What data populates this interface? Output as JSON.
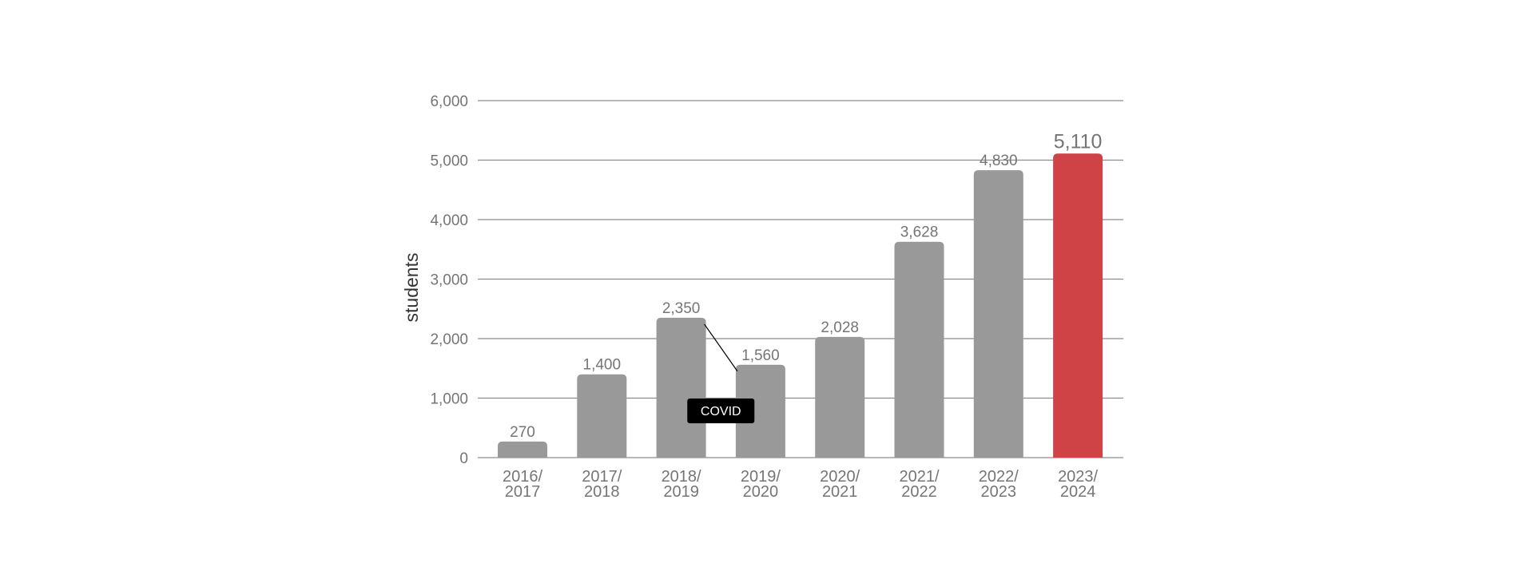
{
  "colors": {
    "bar": "#999999",
    "highlight": "#cf4346",
    "grid": "#8c8c8c",
    "text": "#757575",
    "annotation_bg": "#000000",
    "annotation_text": "#ffffff"
  },
  "chart_data": {
    "type": "bar",
    "title": "",
    "xlabel": "",
    "ylabel": "students",
    "ylim": [
      0,
      6000
    ],
    "yticks": [
      0,
      1000,
      2000,
      3000,
      4000,
      5000,
      6000
    ],
    "ytick_labels": [
      "0",
      "1,000",
      "2,000",
      "3,000",
      "4,000",
      "5,000",
      "6,000"
    ],
    "grid": true,
    "categories": [
      [
        "2016/",
        "2017"
      ],
      [
        "2017/",
        "2018"
      ],
      [
        "2018/",
        "2019"
      ],
      [
        "2019/",
        "2020"
      ],
      [
        "2020/",
        "2021"
      ],
      [
        "2021/",
        "2022"
      ],
      [
        "2022/",
        "2023"
      ],
      [
        "2023/",
        "2024"
      ]
    ],
    "values": [
      270,
      1400,
      2350,
      1560,
      2028,
      3628,
      4830,
      5110
    ],
    "value_labels": [
      "270",
      "1,400",
      "2,350",
      "1,560",
      "2,028",
      "3,628",
      "4,830",
      "5,110"
    ],
    "highlight_index": 7,
    "annotations": [
      {
        "text": "COVID",
        "from_category_index": 2,
        "to_category_index": 3
      }
    ]
  }
}
